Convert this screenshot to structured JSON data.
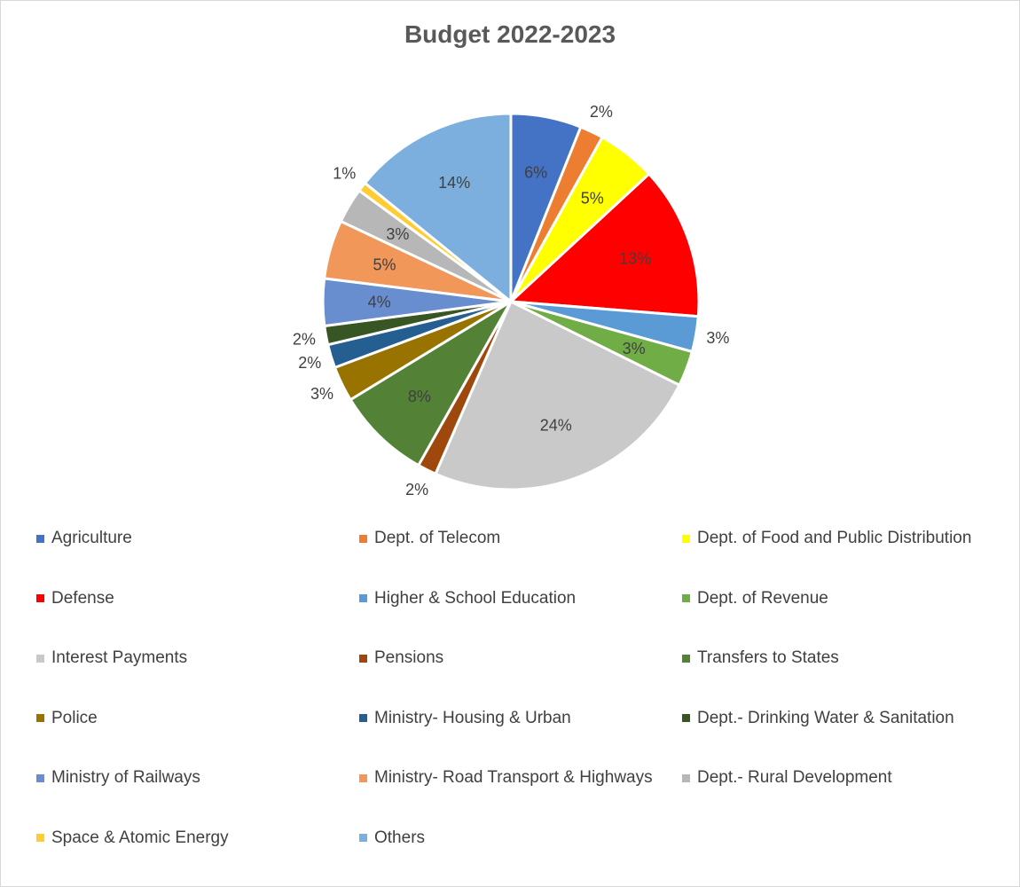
{
  "chart_data": {
    "type": "pie",
    "title": "Budget 2022-2023",
    "legend_position": "bottom",
    "slices": [
      {
        "name": "Agriculture",
        "value": 6,
        "label": "6%",
        "color": "#4472C4",
        "label_inside": true
      },
      {
        "name": "Dept. of Telecom",
        "value": 2,
        "label": "2%",
        "color": "#ED7D31",
        "label_inside": false
      },
      {
        "name": "Dept. of Food and Public Distribution",
        "value": 5,
        "label": "5%",
        "color": "#FFFF00",
        "label_inside": true
      },
      {
        "name": "Defense",
        "value": 13,
        "label": "13%",
        "color": "#FF0000",
        "label_inside": true
      },
      {
        "name": "Higher & School Education",
        "value": 3,
        "label": "3%",
        "color": "#5B9BD5",
        "label_inside": false
      },
      {
        "name": "Dept. of Revenue",
        "value": 3,
        "label": "3%",
        "color": "#70AD47",
        "label_inside": true
      },
      {
        "name": "Interest Payments",
        "value": 24,
        "label": "24%",
        "color": "#C9C9C9",
        "label_inside": true
      },
      {
        "name": "Pensions",
        "value": 1.6,
        "label": "2%",
        "color": "#9E480E",
        "label_inside": false
      },
      {
        "name": "Transfers to States",
        "value": 8,
        "label": "8%",
        "color": "#538135",
        "label_inside": true
      },
      {
        "name": "Police",
        "value": 3,
        "label": "3%",
        "color": "#997300",
        "label_inside": false
      },
      {
        "name": "Ministry- Housing & Urban",
        "value": 2,
        "label": "2%",
        "color": "#255E91",
        "label_inside": false
      },
      {
        "name": "Dept.- Drinking Water & Sanitation",
        "value": 1.6,
        "label": "2%",
        "color": "#375623",
        "label_inside": false
      },
      {
        "name": "Ministry of Railways",
        "value": 4,
        "label": "4%",
        "color": "#698ED0",
        "label_inside": true
      },
      {
        "name": "Ministry- Road Transport & Highways",
        "value": 5,
        "label": "5%",
        "color": "#F1975A",
        "label_inside": true
      },
      {
        "name": "Dept.- Rural Development",
        "value": 3,
        "label": "3%",
        "color": "#B7B7B7",
        "label_inside": true
      },
      {
        "name": "Space & Atomic Energy",
        "value": 0.8,
        "label": "1%",
        "color": "#FFCD33",
        "label_inside": false
      },
      {
        "name": "Others",
        "value": 14,
        "label": "14%",
        "color": "#7CAFDD",
        "label_inside": true
      }
    ]
  }
}
